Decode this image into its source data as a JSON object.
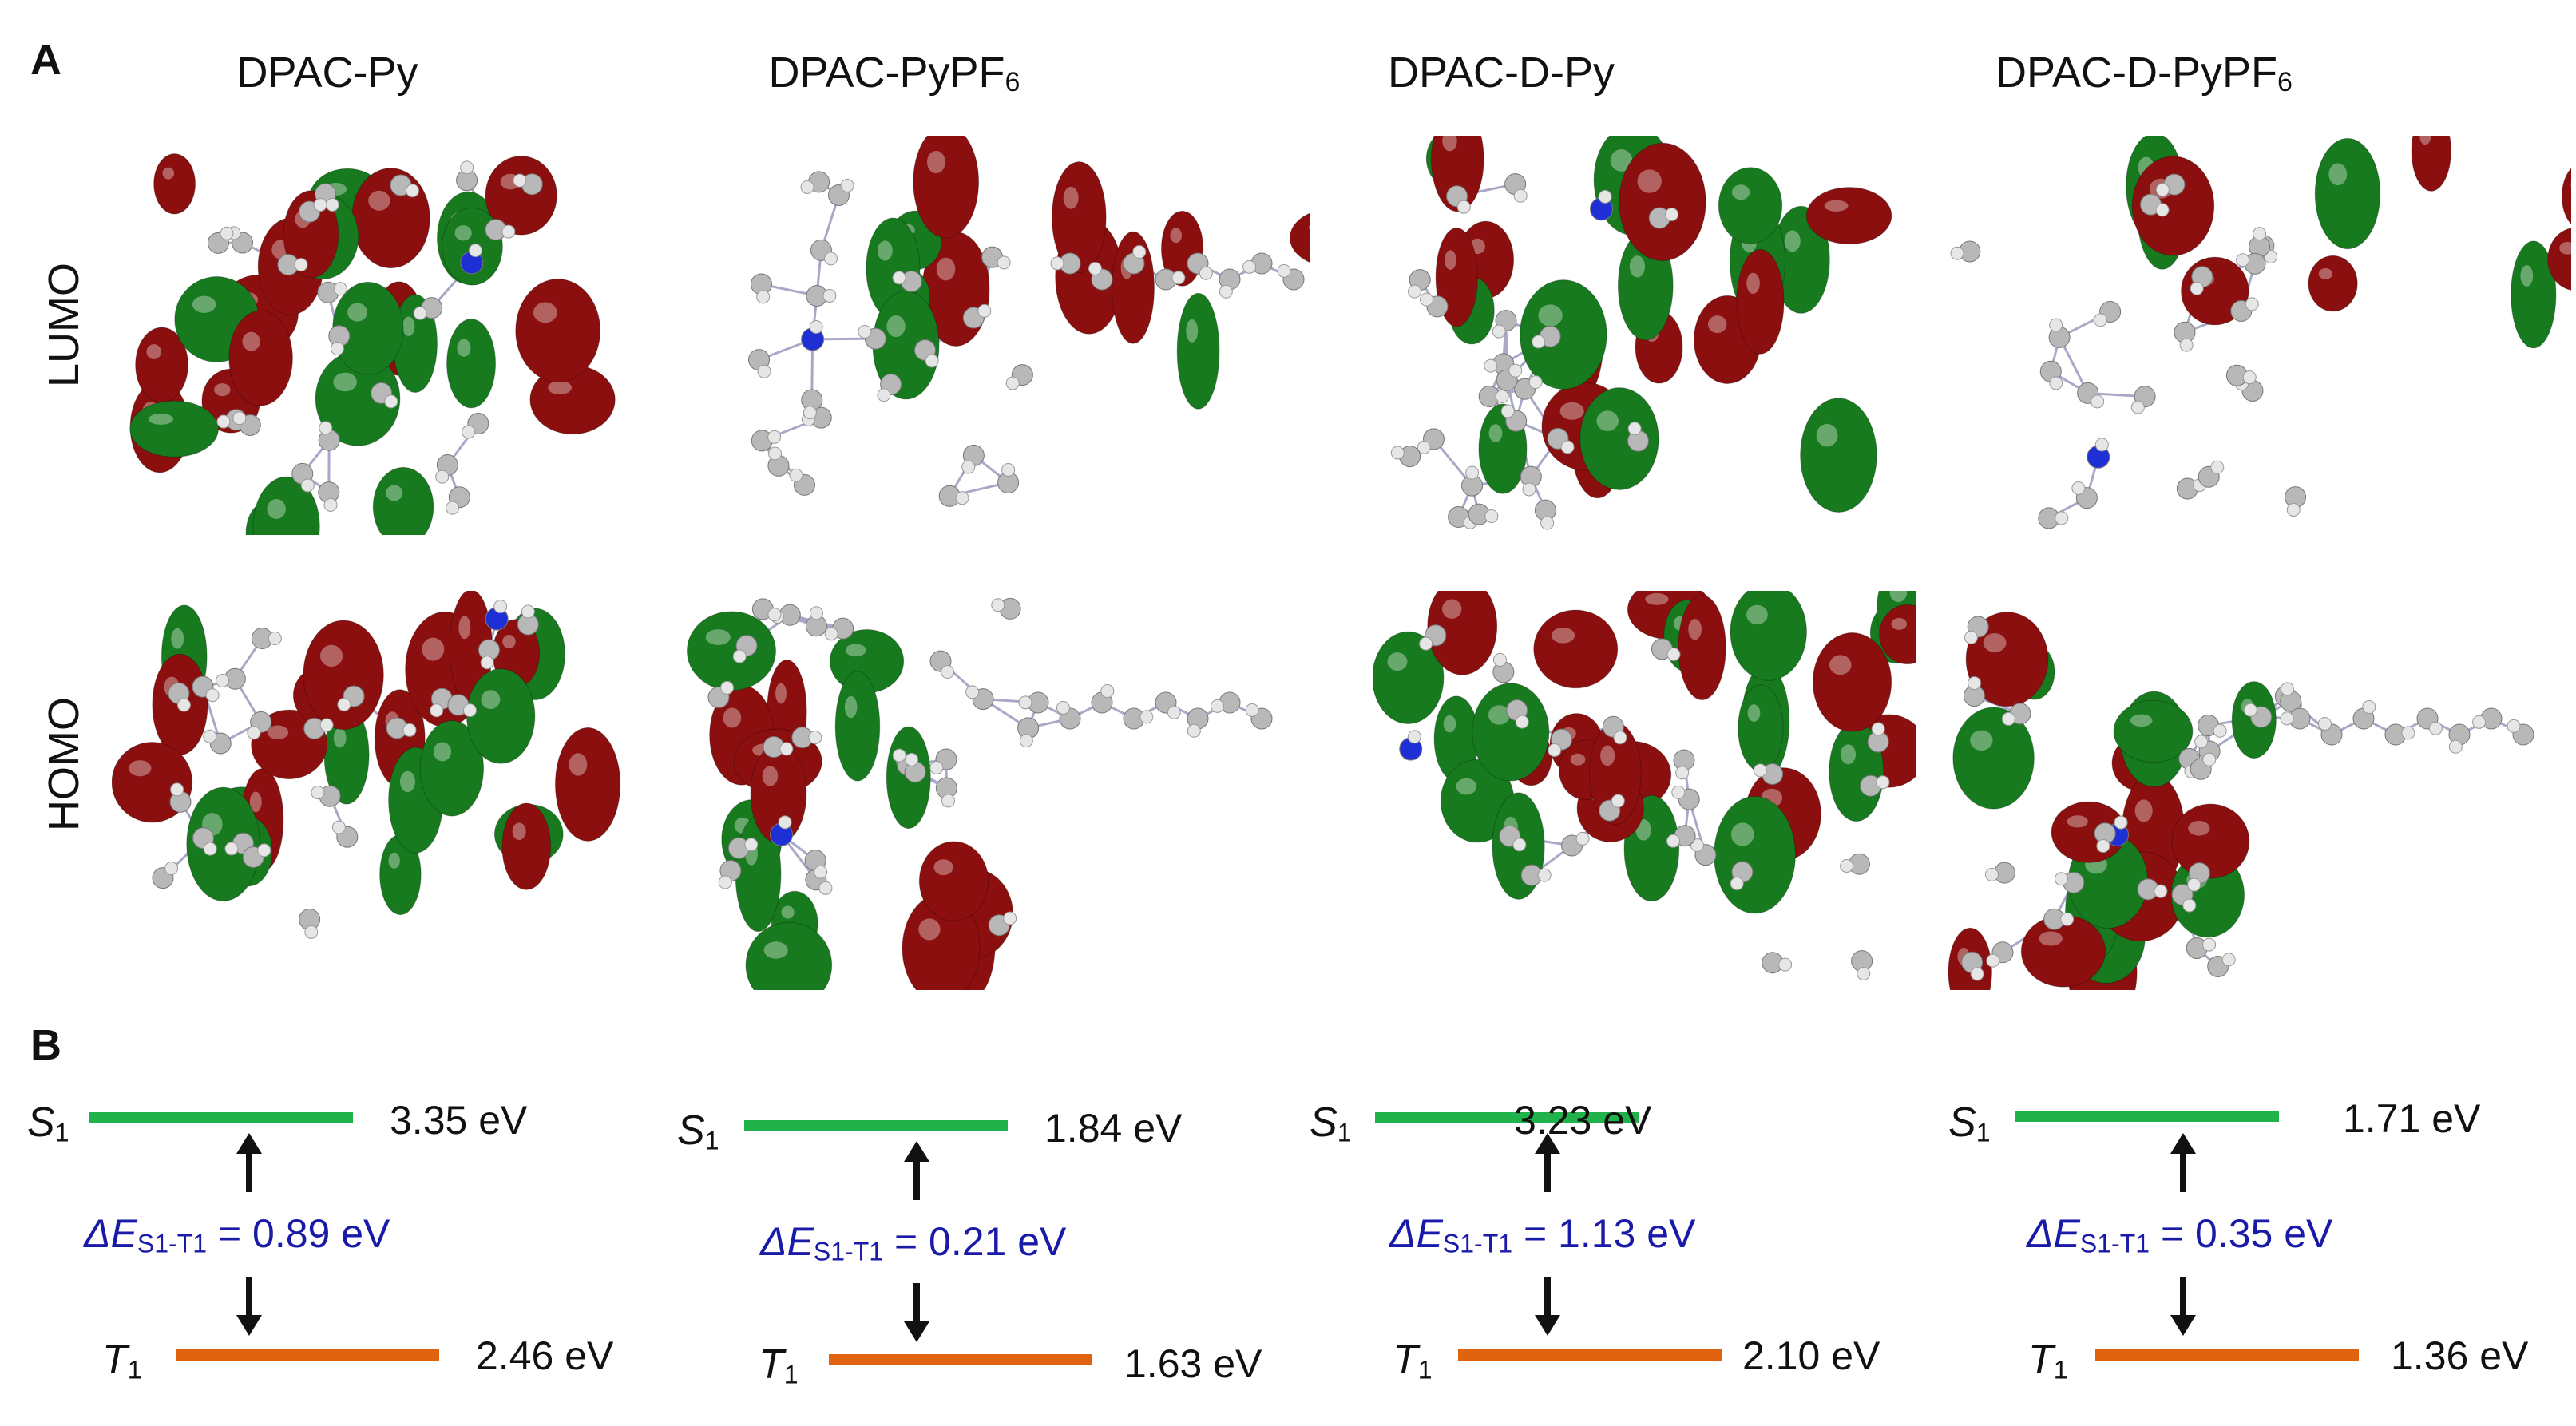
{
  "panel_a": {
    "letter": "A",
    "row_labels": [
      "LUMO",
      "HOMO"
    ],
    "molecules": [
      {
        "name": "DPAC-Py",
        "name_sub": ""
      },
      {
        "name": "DPAC-PyPF",
        "name_sub": "6"
      },
      {
        "name": "DPAC-D-Py",
        "name_sub": ""
      },
      {
        "name": "DPAC-D-PyPF",
        "name_sub": "6"
      }
    ]
  },
  "panel_b": {
    "letter": "B",
    "state_s": "S",
    "state_s_sub": "1",
    "state_t": "T",
    "state_t_sub": "1",
    "gap_prefix": "ΔE",
    "gap_sub": "S1-T1",
    "s1_color": "#22b24c",
    "t1_color": "#e0640f",
    "gap_color": "#1a1aa8",
    "diagrams": [
      {
        "s1": "3.35 eV",
        "t1": "2.46 eV",
        "gap": " = 0.89 eV"
      },
      {
        "s1": "1.84 eV",
        "t1": "1.63 eV",
        "gap": " = 0.21 eV"
      },
      {
        "s1": "3.23 eV",
        "t1": "2.10 eV",
        "gap": " = 1.13 eV"
      },
      {
        "s1": "1.71 eV",
        "t1": "1.36 eV",
        "gap": " = 0.35 eV"
      }
    ]
  },
  "colors": {
    "lobe_red": "#8b0f0f",
    "lobe_green": "#177a1f",
    "atom_carbon": "#b8b8b8",
    "atom_hydrogen": "#e6e6e6",
    "atom_nitrogen": "#1f2fd6"
  }
}
